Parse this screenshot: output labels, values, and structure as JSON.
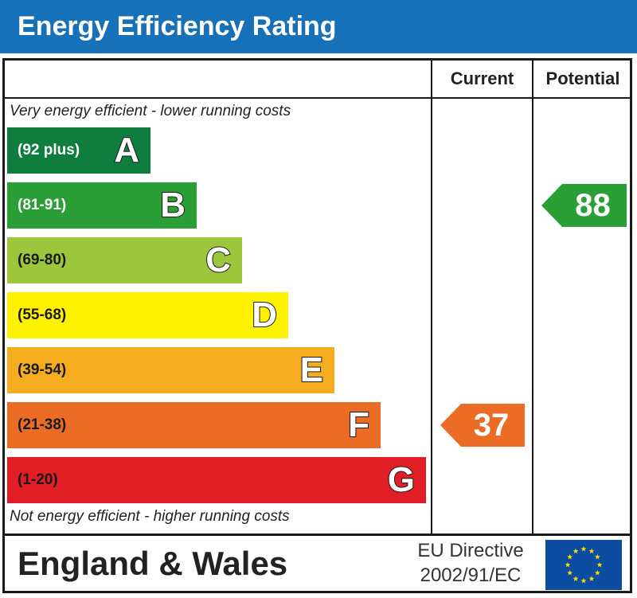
{
  "header": {
    "title": "Energy Efficiency Rating"
  },
  "columns": {
    "current": "Current",
    "potential": "Potential"
  },
  "notes": {
    "top": "Very energy efficient - lower running costs",
    "bottom": "Not energy efficient - higher running costs"
  },
  "chart_data": {
    "type": "bar",
    "title": "Energy Efficiency Rating",
    "categories": [
      "A",
      "B",
      "C",
      "D",
      "E",
      "F",
      "G"
    ],
    "bands": [
      {
        "letter": "A",
        "range": "(92 plus)",
        "min": 92,
        "max": 100,
        "color": "#0f7d3e",
        "text_color": "#ffffff"
      },
      {
        "letter": "B",
        "range": "(81-91)",
        "min": 81,
        "max": 91,
        "color": "#2a9f36",
        "text_color": "#ffffff"
      },
      {
        "letter": "C",
        "range": "(69-80)",
        "min": 69,
        "max": 80,
        "color": "#9cc63c",
        "text_color": "#1a1a1a"
      },
      {
        "letter": "D",
        "range": "(55-68)",
        "min": 55,
        "max": 68,
        "color": "#fff200",
        "text_color": "#1a1a1a"
      },
      {
        "letter": "E",
        "range": "(39-54)",
        "min": 39,
        "max": 54,
        "color": "#f5ad1f",
        "text_color": "#1a1a1a"
      },
      {
        "letter": "F",
        "range": "(21-38)",
        "min": 21,
        "max": 38,
        "color": "#ea6c25",
        "text_color": "#1a1a1a"
      },
      {
        "letter": "G",
        "range": "(1-20)",
        "min": 1,
        "max": 20,
        "color": "#e11d25",
        "text_color": "#1a1a1a"
      }
    ],
    "current": {
      "value": 37,
      "band": "F",
      "color": "#ea6c25"
    },
    "potential": {
      "value": 88,
      "band": "B",
      "color": "#2a9f36"
    }
  },
  "footer": {
    "country": "England & Wales",
    "directive_line1": "EU Directive",
    "directive_line2": "2002/91/EC",
    "flag_icon": "eu-flag-icon",
    "flag_color": "#0c4da2",
    "star_color": "#ffdd00"
  }
}
